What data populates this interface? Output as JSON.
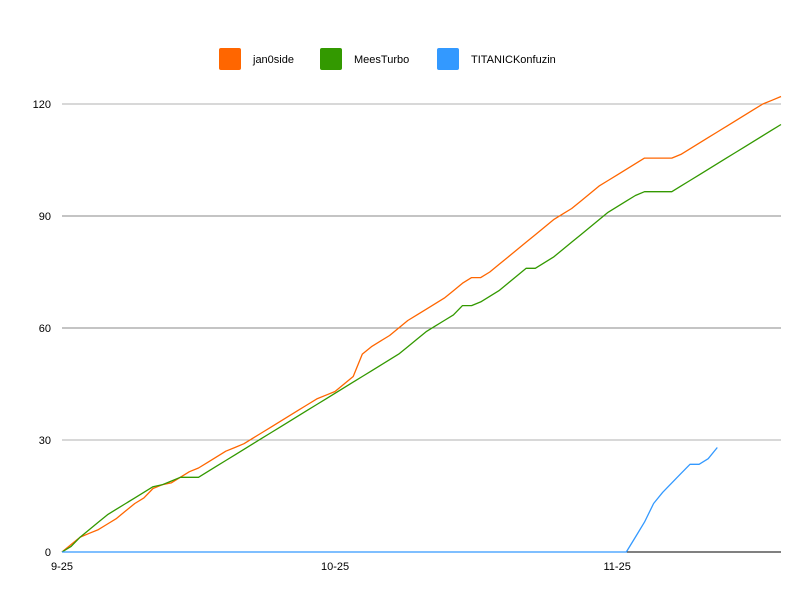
{
  "chart_data": {
    "type": "line",
    "title": "",
    "xlabel": "",
    "ylabel": "",
    "ylim": [
      0,
      120
    ],
    "yticks": [
      0,
      30,
      60,
      90,
      120
    ],
    "x_start": "9-25",
    "x_ticks": [
      "9-25",
      "10-25",
      "11-25"
    ],
    "grid": true,
    "legend_position": "top",
    "series": [
      {
        "name": "jan0side",
        "color": "#ff6600",
        "points": [
          [
            0,
            0
          ],
          [
            1,
            2
          ],
          [
            2,
            4
          ],
          [
            3,
            5
          ],
          [
            4,
            6
          ],
          [
            5,
            7.5
          ],
          [
            6,
            9
          ],
          [
            7,
            11
          ],
          [
            8,
            13
          ],
          [
            9,
            14.5
          ],
          [
            10,
            17
          ],
          [
            11,
            18
          ],
          [
            12,
            18.5
          ],
          [
            13,
            20
          ],
          [
            14,
            21.5
          ],
          [
            15,
            22.5
          ],
          [
            16,
            24
          ],
          [
            17,
            25.5
          ],
          [
            18,
            27
          ],
          [
            19,
            28
          ],
          [
            20,
            29
          ],
          [
            21,
            30.5
          ],
          [
            22,
            32
          ],
          [
            23,
            33.5
          ],
          [
            24,
            35
          ],
          [
            25,
            36.5
          ],
          [
            26,
            38
          ],
          [
            27,
            39.5
          ],
          [
            28,
            41
          ],
          [
            29,
            42
          ],
          [
            30,
            43
          ],
          [
            31,
            45
          ],
          [
            32,
            47
          ],
          [
            33,
            53
          ],
          [
            34,
            55
          ],
          [
            35,
            56.5
          ],
          [
            36,
            58
          ],
          [
            37,
            60
          ],
          [
            38,
            62
          ],
          [
            39,
            63.5
          ],
          [
            40,
            65
          ],
          [
            41,
            66.5
          ],
          [
            42,
            68
          ],
          [
            43,
            70
          ],
          [
            44,
            72
          ],
          [
            45,
            73.5
          ],
          [
            46,
            73.5
          ],
          [
            47,
            75
          ],
          [
            48,
            77
          ],
          [
            49,
            79
          ],
          [
            50,
            81
          ],
          [
            51,
            83
          ],
          [
            52,
            85
          ],
          [
            53,
            87
          ],
          [
            54,
            89
          ],
          [
            55,
            90.5
          ],
          [
            56,
            92
          ],
          [
            57,
            94
          ],
          [
            58,
            96
          ],
          [
            59,
            98
          ],
          [
            60,
            99.5
          ],
          [
            61,
            101
          ],
          [
            62,
            102.5
          ],
          [
            63,
            104
          ],
          [
            64,
            105.5
          ],
          [
            65,
            105.5
          ],
          [
            66,
            105.5
          ],
          [
            67,
            105.5
          ],
          [
            68,
            106.5
          ],
          [
            69,
            108
          ],
          [
            70,
            109.5
          ],
          [
            71,
            111
          ],
          [
            72,
            112.5
          ],
          [
            73,
            114
          ],
          [
            74,
            115.5
          ],
          [
            75,
            117
          ],
          [
            76,
            118.5
          ],
          [
            77,
            120
          ],
          [
            78,
            121
          ],
          [
            79,
            122
          ]
        ]
      },
      {
        "name": "MeesTurbo",
        "color": "#339900",
        "points": [
          [
            0,
            0
          ],
          [
            1,
            1.5
          ],
          [
            2,
            4
          ],
          [
            3,
            6
          ],
          [
            4,
            8
          ],
          [
            5,
            10
          ],
          [
            6,
            11.5
          ],
          [
            7,
            13
          ],
          [
            8,
            14.5
          ],
          [
            9,
            16
          ],
          [
            10,
            17.5
          ],
          [
            11,
            18
          ],
          [
            12,
            19
          ],
          [
            13,
            20
          ],
          [
            14,
            20
          ],
          [
            15,
            20
          ],
          [
            16,
            21.5
          ],
          [
            17,
            23
          ],
          [
            18,
            24.5
          ],
          [
            19,
            26
          ],
          [
            20,
            27.5
          ],
          [
            21,
            29
          ],
          [
            22,
            30.5
          ],
          [
            23,
            32
          ],
          [
            24,
            33.5
          ],
          [
            25,
            35
          ],
          [
            26,
            36.5
          ],
          [
            27,
            38
          ],
          [
            28,
            39.5
          ],
          [
            29,
            41
          ],
          [
            30,
            42.5
          ],
          [
            31,
            44
          ],
          [
            32,
            45.5
          ],
          [
            33,
            47
          ],
          [
            34,
            48.5
          ],
          [
            35,
            50
          ],
          [
            36,
            51.5
          ],
          [
            37,
            53
          ],
          [
            38,
            55
          ],
          [
            39,
            57
          ],
          [
            40,
            59
          ],
          [
            41,
            60.5
          ],
          [
            42,
            62
          ],
          [
            43,
            63.5
          ],
          [
            44,
            66
          ],
          [
            45,
            66
          ],
          [
            46,
            67
          ],
          [
            47,
            68.5
          ],
          [
            48,
            70
          ],
          [
            49,
            72
          ],
          [
            50,
            74
          ],
          [
            51,
            76
          ],
          [
            52,
            76
          ],
          [
            53,
            77.5
          ],
          [
            54,
            79
          ],
          [
            55,
            81
          ],
          [
            56,
            83
          ],
          [
            57,
            85
          ],
          [
            58,
            87
          ],
          [
            59,
            89
          ],
          [
            60,
            91
          ],
          [
            61,
            92.5
          ],
          [
            62,
            94
          ],
          [
            63,
            95.5
          ],
          [
            64,
            96.5
          ],
          [
            65,
            96.5
          ],
          [
            66,
            96.5
          ],
          [
            67,
            96.5
          ],
          [
            68,
            98
          ],
          [
            69,
            99.5
          ],
          [
            70,
            101
          ],
          [
            71,
            102.5
          ],
          [
            72,
            104
          ],
          [
            73,
            105.5
          ],
          [
            74,
            107
          ],
          [
            75,
            108.5
          ],
          [
            76,
            110
          ],
          [
            77,
            111.5
          ],
          [
            78,
            113
          ],
          [
            79,
            114.5
          ]
        ]
      },
      {
        "name": "TITANICKonfuzin",
        "color": "#3399ff",
        "points": [
          [
            0,
            0
          ],
          [
            62,
            0
          ],
          [
            63,
            4
          ],
          [
            64,
            8
          ],
          [
            65,
            13
          ],
          [
            66,
            16
          ],
          [
            67,
            18.5
          ],
          [
            68,
            21
          ],
          [
            69,
            23.5
          ],
          [
            70,
            23.5
          ],
          [
            71,
            25
          ],
          [
            72,
            28
          ]
        ]
      }
    ]
  }
}
